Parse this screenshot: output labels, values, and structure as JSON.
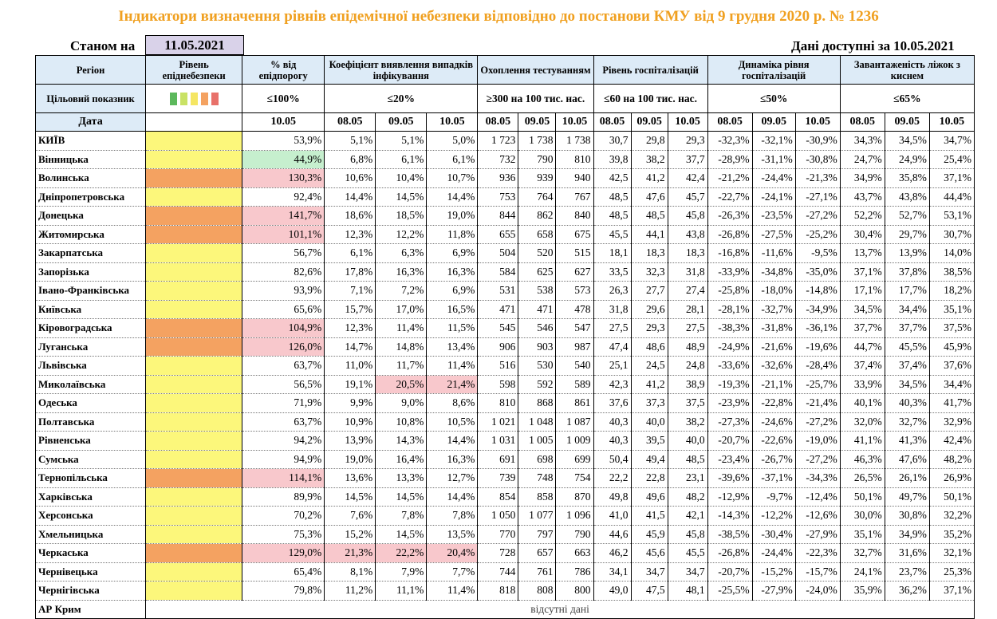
{
  "title": "Індикатори визначення рівнів епідемічної небезпеки відповідно до постанови КМУ від 9 грудня 2020 р. № 1236",
  "as_of": {
    "label": "Станом на",
    "date": "11.05.2021"
  },
  "available": {
    "label": "Дані доступні за",
    "date": "10.05.2021"
  },
  "headers": {
    "region": "Регіон",
    "level": "Рівень епіднебезпеки",
    "threshold": "% від епідпорогу",
    "detection": "Коефіцієнт виявлення випадків інфікування",
    "testing": "Охоплення тестуванням",
    "hosp": "Рівень госпіталізацій",
    "hosp_dyn": "Динаміка рівня госпіталізацій",
    "beds": "Завантаженість ліжок з киснем"
  },
  "targets": {
    "label": "Цільовий показник",
    "threshold": "≤100%",
    "detection": "≤20%",
    "testing": "≥300 на 100 тис. нас.",
    "hosp": "≤60 на 100 тис. нас.",
    "hosp_dyn": "≤50%",
    "beds": "≤65%"
  },
  "level_swatches": [
    "#5cb85c",
    "#c9e265",
    "#f5e663",
    "#f4a261",
    "#e8716a"
  ],
  "date_row": {
    "label": "Дата",
    "threshold": "10.05",
    "group": [
      "08.05",
      "09.05",
      "10.05"
    ]
  },
  "level_colors": {
    "yellow": "#fcf77b",
    "orange": "#f4a261"
  },
  "rows": [
    {
      "region": "КИЇВ",
      "level": "yellow",
      "thr": "53,9%",
      "thr_bg": "",
      "det": [
        "5,1%",
        "5,1%",
        "5,0%"
      ],
      "det_bg": [
        "",
        "",
        ""
      ],
      "test": [
        "1 723",
        "1 738",
        "1 738"
      ],
      "hosp": [
        "30,7",
        "29,8",
        "29,3"
      ],
      "dyn": [
        "-32,3%",
        "-32,1%",
        "-30,9%"
      ],
      "beds": [
        "34,3%",
        "34,5%",
        "34,7%"
      ]
    },
    {
      "region": "Вінницька",
      "level": "yellow",
      "thr": "44,9%",
      "thr_bg": "green",
      "det": [
        "6,8%",
        "6,1%",
        "6,1%"
      ],
      "det_bg": [
        "",
        "",
        ""
      ],
      "test": [
        "732",
        "790",
        "810"
      ],
      "hosp": [
        "39,8",
        "38,2",
        "37,7"
      ],
      "dyn": [
        "-28,9%",
        "-31,1%",
        "-30,8%"
      ],
      "beds": [
        "24,7%",
        "24,9%",
        "25,4%"
      ]
    },
    {
      "region": "Волинська",
      "level": "orange",
      "thr": "130,3%",
      "thr_bg": "red",
      "det": [
        "10,6%",
        "10,4%",
        "10,7%"
      ],
      "det_bg": [
        "",
        "",
        ""
      ],
      "test": [
        "936",
        "939",
        "940"
      ],
      "hosp": [
        "42,5",
        "41,2",
        "42,4"
      ],
      "dyn": [
        "-21,2%",
        "-24,4%",
        "-21,3%"
      ],
      "beds": [
        "34,9%",
        "35,8%",
        "37,1%"
      ]
    },
    {
      "region": "Дніпропетровська",
      "level": "yellow",
      "thr": "92,4%",
      "thr_bg": "",
      "det": [
        "14,4%",
        "14,5%",
        "14,4%"
      ],
      "det_bg": [
        "",
        "",
        ""
      ],
      "test": [
        "753",
        "764",
        "767"
      ],
      "hosp": [
        "48,5",
        "47,6",
        "45,7"
      ],
      "dyn": [
        "-22,7%",
        "-24,1%",
        "-27,1%"
      ],
      "beds": [
        "43,7%",
        "43,8%",
        "44,4%"
      ]
    },
    {
      "region": "Донецька",
      "level": "orange",
      "thr": "141,7%",
      "thr_bg": "red",
      "det": [
        "18,6%",
        "18,5%",
        "19,0%"
      ],
      "det_bg": [
        "",
        "",
        ""
      ],
      "test": [
        "844",
        "862",
        "840"
      ],
      "hosp": [
        "48,5",
        "48,5",
        "45,8"
      ],
      "dyn": [
        "-26,3%",
        "-23,5%",
        "-27,2%"
      ],
      "beds": [
        "52,2%",
        "52,7%",
        "53,1%"
      ]
    },
    {
      "region": "Житомирська",
      "level": "orange",
      "thr": "101,1%",
      "thr_bg": "red",
      "det": [
        "12,3%",
        "12,2%",
        "11,8%"
      ],
      "det_bg": [
        "",
        "",
        ""
      ],
      "test": [
        "655",
        "658",
        "675"
      ],
      "hosp": [
        "45,5",
        "44,1",
        "43,8"
      ],
      "dyn": [
        "-26,8%",
        "-27,5%",
        "-25,2%"
      ],
      "beds": [
        "30,4%",
        "29,7%",
        "30,7%"
      ]
    },
    {
      "region": "Закарпатська",
      "level": "yellow",
      "thr": "56,7%",
      "thr_bg": "",
      "det": [
        "6,1%",
        "6,3%",
        "6,9%"
      ],
      "det_bg": [
        "",
        "",
        ""
      ],
      "test": [
        "504",
        "520",
        "515"
      ],
      "hosp": [
        "18,1",
        "18,3",
        "18,3"
      ],
      "dyn": [
        "-16,8%",
        "-11,6%",
        "-9,5%"
      ],
      "beds": [
        "13,7%",
        "13,9%",
        "14,0%"
      ]
    },
    {
      "region": "Запорізька",
      "level": "yellow",
      "thr": "82,6%",
      "thr_bg": "",
      "det": [
        "17,8%",
        "16,3%",
        "16,3%"
      ],
      "det_bg": [
        "",
        "",
        ""
      ],
      "test": [
        "584",
        "625",
        "627"
      ],
      "hosp": [
        "33,5",
        "32,3",
        "31,8"
      ],
      "dyn": [
        "-33,9%",
        "-34,8%",
        "-35,0%"
      ],
      "beds": [
        "37,1%",
        "37,8%",
        "38,5%"
      ]
    },
    {
      "region": "Івано-Франківська",
      "level": "yellow",
      "thr": "93,9%",
      "thr_bg": "",
      "det": [
        "7,1%",
        "7,2%",
        "6,9%"
      ],
      "det_bg": [
        "",
        "",
        ""
      ],
      "test": [
        "531",
        "538",
        "573"
      ],
      "hosp": [
        "26,3",
        "27,7",
        "27,4"
      ],
      "dyn": [
        "-25,8%",
        "-18,0%",
        "-14,8%"
      ],
      "beds": [
        "17,1%",
        "17,7%",
        "18,2%"
      ]
    },
    {
      "region": "Київська",
      "level": "yellow",
      "thr": "65,6%",
      "thr_bg": "",
      "det": [
        "15,7%",
        "17,0%",
        "16,5%"
      ],
      "det_bg": [
        "",
        "",
        ""
      ],
      "test": [
        "471",
        "471",
        "478"
      ],
      "hosp": [
        "31,8",
        "29,6",
        "28,1"
      ],
      "dyn": [
        "-28,1%",
        "-32,7%",
        "-34,9%"
      ],
      "beds": [
        "34,5%",
        "34,4%",
        "35,1%"
      ]
    },
    {
      "region": "Кіровоградська",
      "level": "orange",
      "thr": "104,9%",
      "thr_bg": "red",
      "det": [
        "12,3%",
        "11,4%",
        "11,5%"
      ],
      "det_bg": [
        "",
        "",
        ""
      ],
      "test": [
        "545",
        "546",
        "547"
      ],
      "hosp": [
        "27,5",
        "29,3",
        "27,5"
      ],
      "dyn": [
        "-38,3%",
        "-31,8%",
        "-36,1%"
      ],
      "beds": [
        "37,7%",
        "37,7%",
        "37,5%"
      ]
    },
    {
      "region": "Луганська",
      "level": "orange",
      "thr": "126,0%",
      "thr_bg": "red",
      "det": [
        "14,7%",
        "14,8%",
        "13,4%"
      ],
      "det_bg": [
        "",
        "",
        ""
      ],
      "test": [
        "906",
        "903",
        "987"
      ],
      "hosp": [
        "47,4",
        "48,6",
        "48,9"
      ],
      "dyn": [
        "-24,9%",
        "-21,6%",
        "-19,6%"
      ],
      "beds": [
        "44,7%",
        "45,5%",
        "45,9%"
      ]
    },
    {
      "region": "Львівська",
      "level": "yellow",
      "thr": "63,7%",
      "thr_bg": "",
      "det": [
        "11,0%",
        "11,7%",
        "11,4%"
      ],
      "det_bg": [
        "",
        "",
        ""
      ],
      "test": [
        "516",
        "530",
        "540"
      ],
      "hosp": [
        "25,1",
        "24,5",
        "24,8"
      ],
      "dyn": [
        "-33,6%",
        "-32,6%",
        "-28,4%"
      ],
      "beds": [
        "37,4%",
        "37,4%",
        "37,6%"
      ]
    },
    {
      "region": "Миколаївська",
      "level": "yellow",
      "thr": "56,5%",
      "thr_bg": "",
      "det": [
        "19,1%",
        "20,5%",
        "21,4%"
      ],
      "det_bg": [
        "",
        "red",
        "red"
      ],
      "test": [
        "598",
        "592",
        "589"
      ],
      "hosp": [
        "42,3",
        "41,2",
        "38,9"
      ],
      "dyn": [
        "-19,3%",
        "-21,1%",
        "-25,7%"
      ],
      "beds": [
        "33,9%",
        "34,5%",
        "34,4%"
      ]
    },
    {
      "region": "Одеська",
      "level": "yellow",
      "thr": "71,9%",
      "thr_bg": "",
      "det": [
        "9,9%",
        "9,0%",
        "8,6%"
      ],
      "det_bg": [
        "",
        "",
        ""
      ],
      "test": [
        "810",
        "868",
        "861"
      ],
      "hosp": [
        "37,6",
        "37,3",
        "37,5"
      ],
      "dyn": [
        "-23,9%",
        "-22,8%",
        "-21,4%"
      ],
      "beds": [
        "40,1%",
        "40,3%",
        "41,7%"
      ]
    },
    {
      "region": "Полтавська",
      "level": "yellow",
      "thr": "63,7%",
      "thr_bg": "",
      "det": [
        "10,9%",
        "10,8%",
        "10,5%"
      ],
      "det_bg": [
        "",
        "",
        ""
      ],
      "test": [
        "1 021",
        "1 048",
        "1 087"
      ],
      "hosp": [
        "40,3",
        "40,0",
        "38,2"
      ],
      "dyn": [
        "-27,3%",
        "-24,6%",
        "-27,2%"
      ],
      "beds": [
        "32,0%",
        "32,7%",
        "32,9%"
      ]
    },
    {
      "region": "Рівненська",
      "level": "yellow",
      "thr": "94,2%",
      "thr_bg": "",
      "det": [
        "13,9%",
        "14,3%",
        "14,4%"
      ],
      "det_bg": [
        "",
        "",
        ""
      ],
      "test": [
        "1 031",
        "1 005",
        "1 009"
      ],
      "hosp": [
        "40,3",
        "39,5",
        "40,0"
      ],
      "dyn": [
        "-20,7%",
        "-22,6%",
        "-19,0%"
      ],
      "beds": [
        "41,1%",
        "41,3%",
        "42,4%"
      ]
    },
    {
      "region": "Сумська",
      "level": "yellow",
      "thr": "94,9%",
      "thr_bg": "",
      "det": [
        "19,0%",
        "16,4%",
        "16,3%"
      ],
      "det_bg": [
        "",
        "",
        ""
      ],
      "test": [
        "691",
        "698",
        "699"
      ],
      "hosp": [
        "50,4",
        "49,4",
        "48,5"
      ],
      "dyn": [
        "-23,4%",
        "-26,7%",
        "-27,2%"
      ],
      "beds": [
        "46,3%",
        "47,6%",
        "48,2%"
      ]
    },
    {
      "region": "Тернопільська",
      "level": "orange",
      "thr": "114,1%",
      "thr_bg": "red",
      "det": [
        "13,6%",
        "13,3%",
        "12,7%"
      ],
      "det_bg": [
        "",
        "",
        ""
      ],
      "test": [
        "739",
        "748",
        "754"
      ],
      "hosp": [
        "22,2",
        "22,8",
        "23,1"
      ],
      "dyn": [
        "-39,6%",
        "-37,1%",
        "-34,3%"
      ],
      "beds": [
        "26,5%",
        "26,1%",
        "26,9%"
      ]
    },
    {
      "region": "Харківська",
      "level": "yellow",
      "thr": "89,9%",
      "thr_bg": "",
      "det": [
        "14,5%",
        "14,5%",
        "14,4%"
      ],
      "det_bg": [
        "",
        "",
        ""
      ],
      "test": [
        "854",
        "858",
        "870"
      ],
      "hosp": [
        "49,8",
        "49,6",
        "48,2"
      ],
      "dyn": [
        "-12,9%",
        "-9,7%",
        "-12,4%"
      ],
      "beds": [
        "50,1%",
        "49,7%",
        "50,1%"
      ]
    },
    {
      "region": "Херсонська",
      "level": "yellow",
      "thr": "70,2%",
      "thr_bg": "",
      "det": [
        "7,6%",
        "7,8%",
        "7,8%"
      ],
      "det_bg": [
        "",
        "",
        ""
      ],
      "test": [
        "1 050",
        "1 077",
        "1 096"
      ],
      "hosp": [
        "41,0",
        "41,5",
        "42,1"
      ],
      "dyn": [
        "-14,3%",
        "-12,2%",
        "-12,6%"
      ],
      "beds": [
        "30,0%",
        "30,8%",
        "32,2%"
      ]
    },
    {
      "region": "Хмельницька",
      "level": "yellow",
      "thr": "75,3%",
      "thr_bg": "",
      "det": [
        "15,2%",
        "14,5%",
        "13,5%"
      ],
      "det_bg": [
        "",
        "",
        ""
      ],
      "test": [
        "770",
        "797",
        "790"
      ],
      "hosp": [
        "44,6",
        "45,9",
        "45,8"
      ],
      "dyn": [
        "-38,5%",
        "-30,4%",
        "-27,9%"
      ],
      "beds": [
        "35,1%",
        "34,9%",
        "35,2%"
      ]
    },
    {
      "region": "Черкаська",
      "level": "orange",
      "thr": "129,0%",
      "thr_bg": "red",
      "det": [
        "21,3%",
        "22,2%",
        "20,4%"
      ],
      "det_bg": [
        "red",
        "red",
        "red"
      ],
      "test": [
        "728",
        "657",
        "663"
      ],
      "hosp": [
        "46,2",
        "45,6",
        "45,5"
      ],
      "dyn": [
        "-26,8%",
        "-24,4%",
        "-22,3%"
      ],
      "beds": [
        "32,7%",
        "31,6%",
        "32,1%"
      ]
    },
    {
      "region": "Чернівецька",
      "level": "yellow",
      "thr": "65,4%",
      "thr_bg": "",
      "det": [
        "8,1%",
        "7,9%",
        "7,7%"
      ],
      "det_bg": [
        "",
        "",
        ""
      ],
      "test": [
        "744",
        "761",
        "786"
      ],
      "hosp": [
        "34,1",
        "34,7",
        "34,7"
      ],
      "dyn": [
        "-20,7%",
        "-15,2%",
        "-15,7%"
      ],
      "beds": [
        "24,1%",
        "23,7%",
        "25,3%"
      ]
    },
    {
      "region": "Чернігівська",
      "level": "yellow",
      "thr": "79,8%",
      "thr_bg": "",
      "det": [
        "11,2%",
        "11,1%",
        "11,4%"
      ],
      "det_bg": [
        "",
        "",
        ""
      ],
      "test": [
        "818",
        "808",
        "800"
      ],
      "hosp": [
        "49,0",
        "47,5",
        "48,1"
      ],
      "dyn": [
        "-25,5%",
        "-27,9%",
        "-24,0%"
      ],
      "beds": [
        "35,9%",
        "36,2%",
        "37,1%"
      ]
    }
  ],
  "last_row": {
    "region": "АР Крим",
    "note": "відсутні дані"
  }
}
